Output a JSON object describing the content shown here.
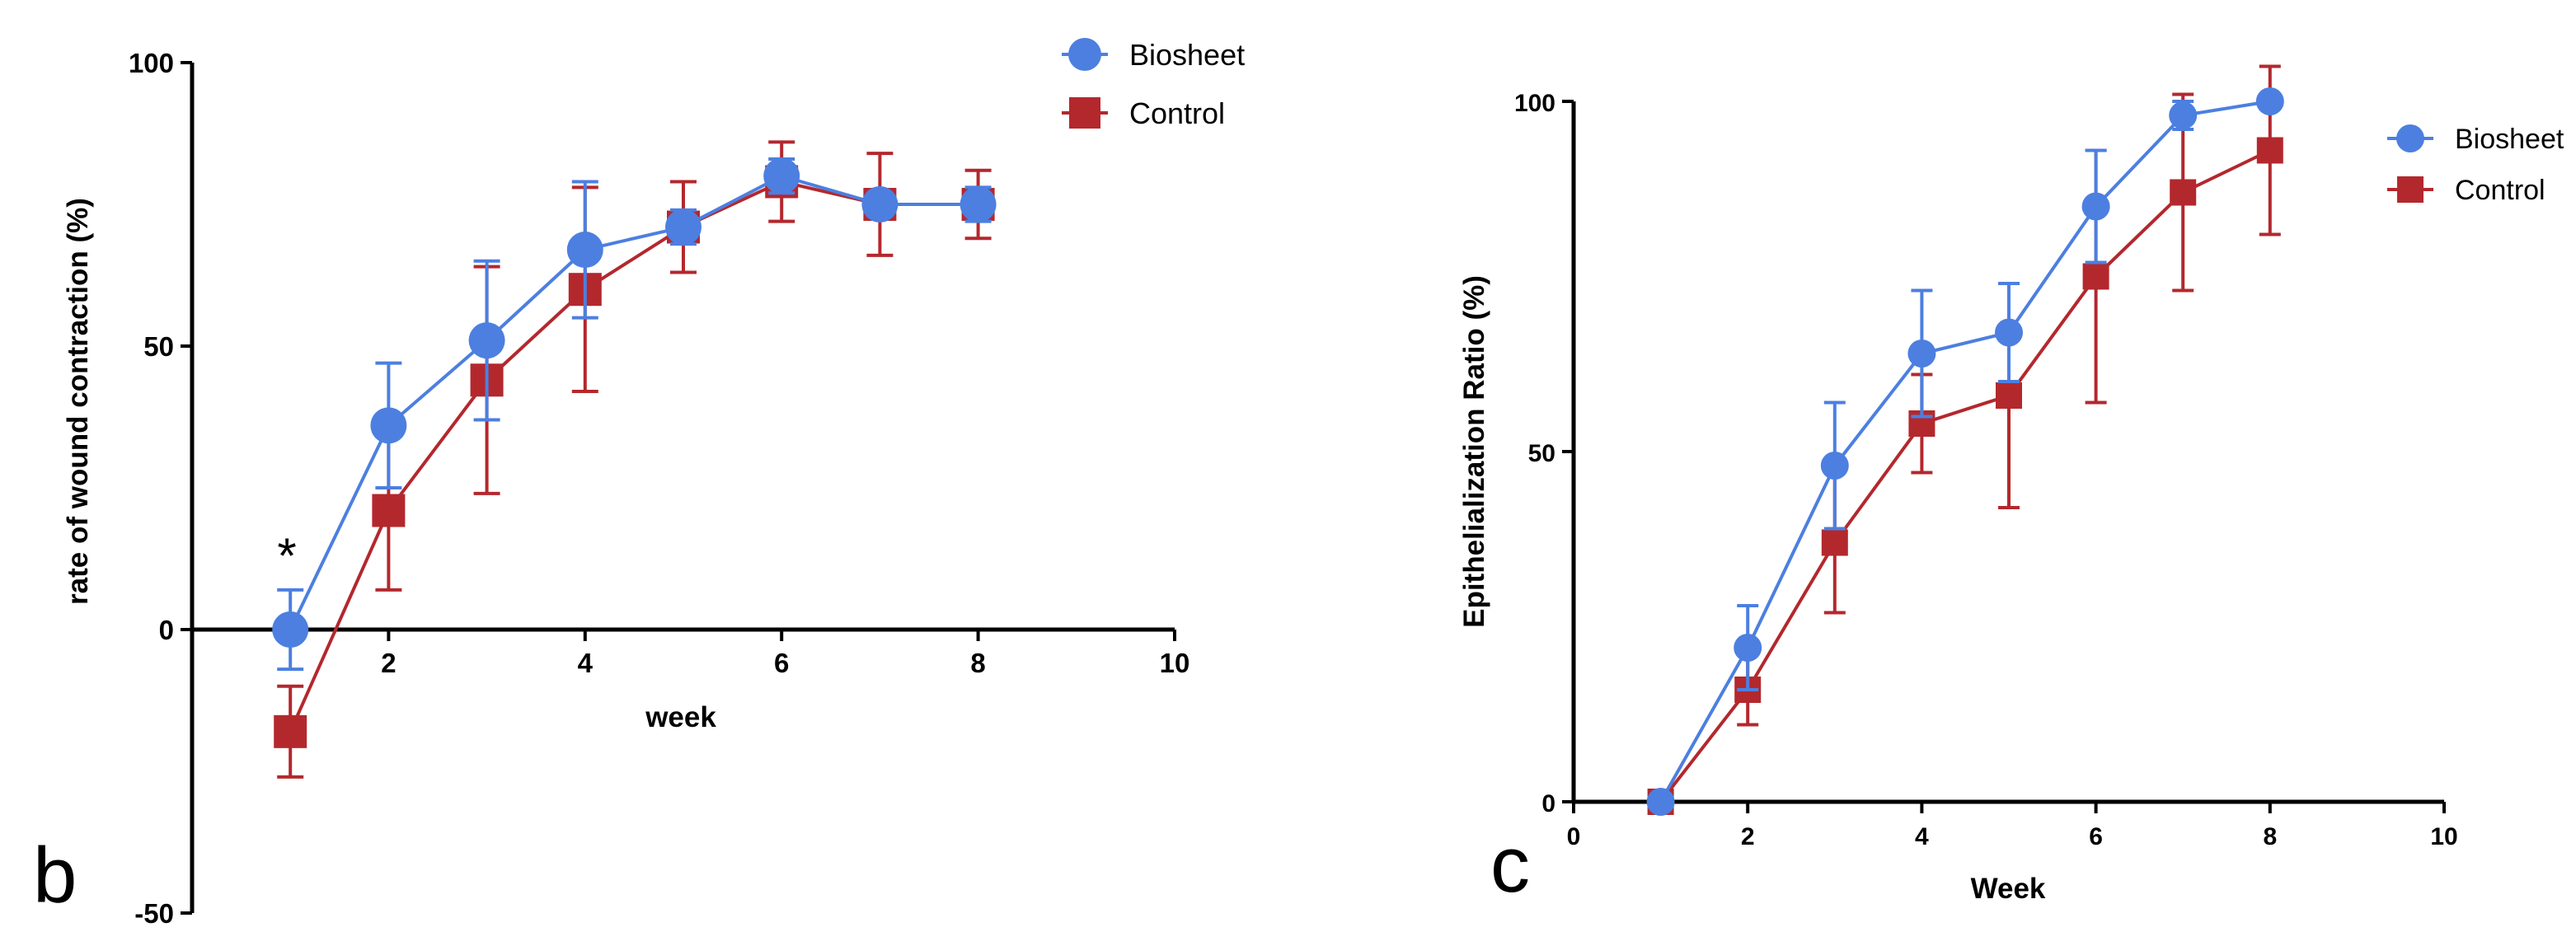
{
  "colors": {
    "biosheet": "#4c7fe0",
    "control": "#b3282d",
    "axis": "#000000"
  },
  "chart_data": [
    {
      "panel": "b",
      "type": "line",
      "xlabel": "week",
      "ylabel": "rate of wound contraction (%)",
      "xlim": [
        0,
        10
      ],
      "ylim": [
        -50,
        100
      ],
      "x_ticks": [
        2,
        4,
        6,
        8,
        10
      ],
      "y_ticks": [
        -50,
        0,
        50,
        100
      ],
      "legend": [
        "Biosheet",
        "Control"
      ],
      "legend_position": "top-right",
      "annotations": [
        {
          "text": "*",
          "x": 1,
          "y": 9
        }
      ],
      "series": [
        {
          "name": "Biosheet",
          "marker": "circle",
          "x": [
            1,
            2,
            3,
            4,
            5,
            6,
            7,
            8
          ],
          "y": [
            0,
            36,
            51,
            67,
            71,
            80,
            75,
            75
          ],
          "err": [
            7,
            11,
            14,
            12,
            3,
            3,
            2,
            3
          ]
        },
        {
          "name": "Control",
          "marker": "square",
          "x": [
            1,
            2,
            3,
            4,
            5,
            6,
            7,
            8
          ],
          "y": [
            -18,
            21,
            44,
            60,
            71,
            79,
            75,
            75
          ],
          "err": [
            8,
            14,
            20,
            18,
            8,
            7,
            9,
            6
          ]
        }
      ]
    },
    {
      "panel": "c",
      "type": "line",
      "xlabel": "Week",
      "ylabel": "Epithelialization Ratio (%)",
      "xlim": [
        0,
        10
      ],
      "ylim": [
        0,
        100
      ],
      "x_ticks": [
        0,
        2,
        4,
        6,
        8,
        10
      ],
      "y_ticks": [
        0,
        50,
        100
      ],
      "legend": [
        "Biosheet",
        "Control"
      ],
      "legend_position": "top-right",
      "series": [
        {
          "name": "Biosheet",
          "marker": "circle",
          "x": [
            1,
            2,
            3,
            4,
            5,
            6,
            7,
            8
          ],
          "y": [
            0,
            22,
            48,
            64,
            67,
            85,
            98,
            100
          ],
          "err": [
            0,
            6,
            9,
            9,
            7,
            8,
            2,
            0
          ]
        },
        {
          "name": "Control",
          "marker": "square",
          "x": [
            1,
            2,
            3,
            4,
            5,
            6,
            7,
            8
          ],
          "y": [
            0,
            16,
            37,
            54,
            58,
            75,
            87,
            93
          ],
          "err": [
            0,
            5,
            10,
            7,
            16,
            18,
            14,
            12
          ]
        }
      ]
    }
  ]
}
